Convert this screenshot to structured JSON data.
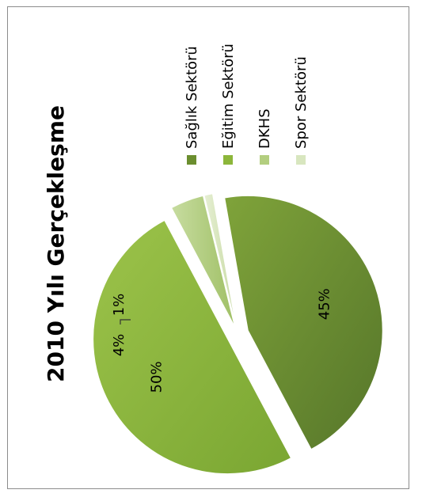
{
  "chart_data": {
    "type": "pie",
    "title": "2010 Yılı Gerçekleşme",
    "categories": [
      "Sağlık Sektörü",
      "Eğitim Sektörü",
      "DKHS",
      "Spor Sektörü"
    ],
    "values": [
      45,
      50,
      4,
      1
    ],
    "labels": [
      "45%",
      "50%",
      "4%",
      "1%"
    ],
    "colors": [
      "#6b8e2f",
      "#8cb63a",
      "#b3ce7f",
      "#d8e6bf"
    ],
    "legend_position": "right",
    "orientation": "rotated 90° counter-clockwise"
  }
}
